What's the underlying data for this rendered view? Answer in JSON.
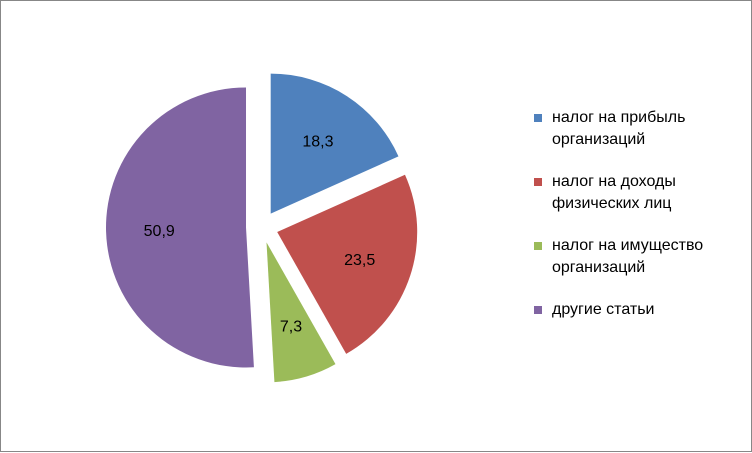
{
  "chart_data": {
    "type": "pie",
    "exploded": true,
    "legend_position": "right",
    "slices": [
      {
        "label": "налог на прибыль организаций",
        "value": 18.3,
        "display": "18,3",
        "color": "#4F81BD"
      },
      {
        "label": "налог на доходы физических лиц",
        "value": 23.5,
        "display": "23,5",
        "color": "#C0504D"
      },
      {
        "label": "налог на имущество организаций",
        "value": 7.3,
        "display": "7,3",
        "color": "#9BBB59"
      },
      {
        "label": "другие статьи",
        "value": 50.9,
        "display": "50,9",
        "color": "#8064A2"
      }
    ]
  }
}
